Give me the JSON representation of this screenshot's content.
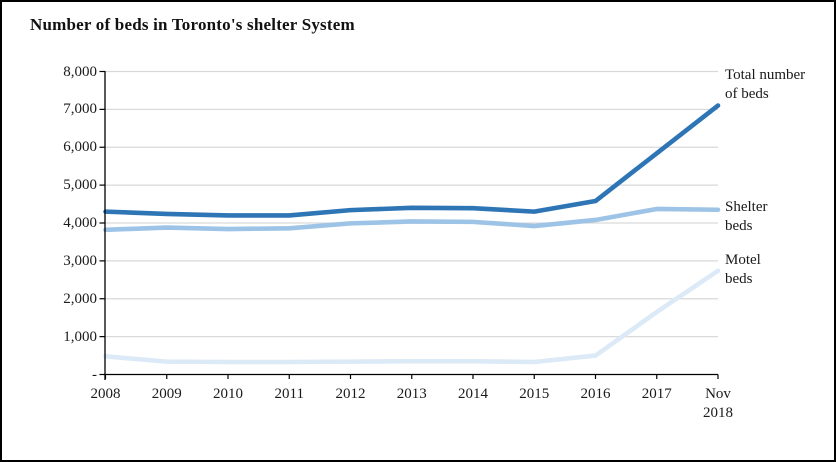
{
  "chart_data": {
    "type": "line",
    "title": "Number of beds in Toronto's shelter System",
    "xlabel": "",
    "ylabel": "",
    "ylim": [
      0,
      8000
    ],
    "y_tick_interval": 1000,
    "grid": "horizontal",
    "legend_position": "labels-at-line-ends",
    "x_labels": [
      "2008",
      "2009",
      "2010",
      "2011",
      "2012",
      "2013",
      "2014",
      "2015",
      "2016",
      "2017",
      "Nov 2018"
    ],
    "y_tick_labels_top_to_bottom": [
      "8,000",
      "7,000",
      "6,000",
      "5,000",
      "4,000",
      "3,000",
      "2,000",
      "1,000",
      "-"
    ],
    "series": [
      {
        "name": "Total number of beds",
        "color": "#2E75B6",
        "values": [
          4300,
          4240,
          4200,
          4200,
          4340,
          4400,
          4390,
          4300,
          4580,
          5840,
          7100
        ]
      },
      {
        "name": "Shelter beds",
        "color": "#9DC3E6",
        "values": [
          3820,
          3880,
          3840,
          3860,
          3990,
          4040,
          4030,
          3920,
          4080,
          4370,
          4350
        ]
      },
      {
        "name": "Motel beds",
        "color": "#DCE9F6",
        "values": [
          480,
          340,
          330,
          330,
          340,
          350,
          350,
          330,
          500,
          1650,
          2740
        ]
      }
    ],
    "colors": {
      "gridline": "#D9D9D9",
      "axis": "#000000",
      "text": "#1A1A1A",
      "border": "#000000",
      "background": "#FFFFFF"
    }
  },
  "legend": {
    "total": "Total number of beds",
    "shelter": "Shelter beds",
    "motel": "Motel beds"
  }
}
